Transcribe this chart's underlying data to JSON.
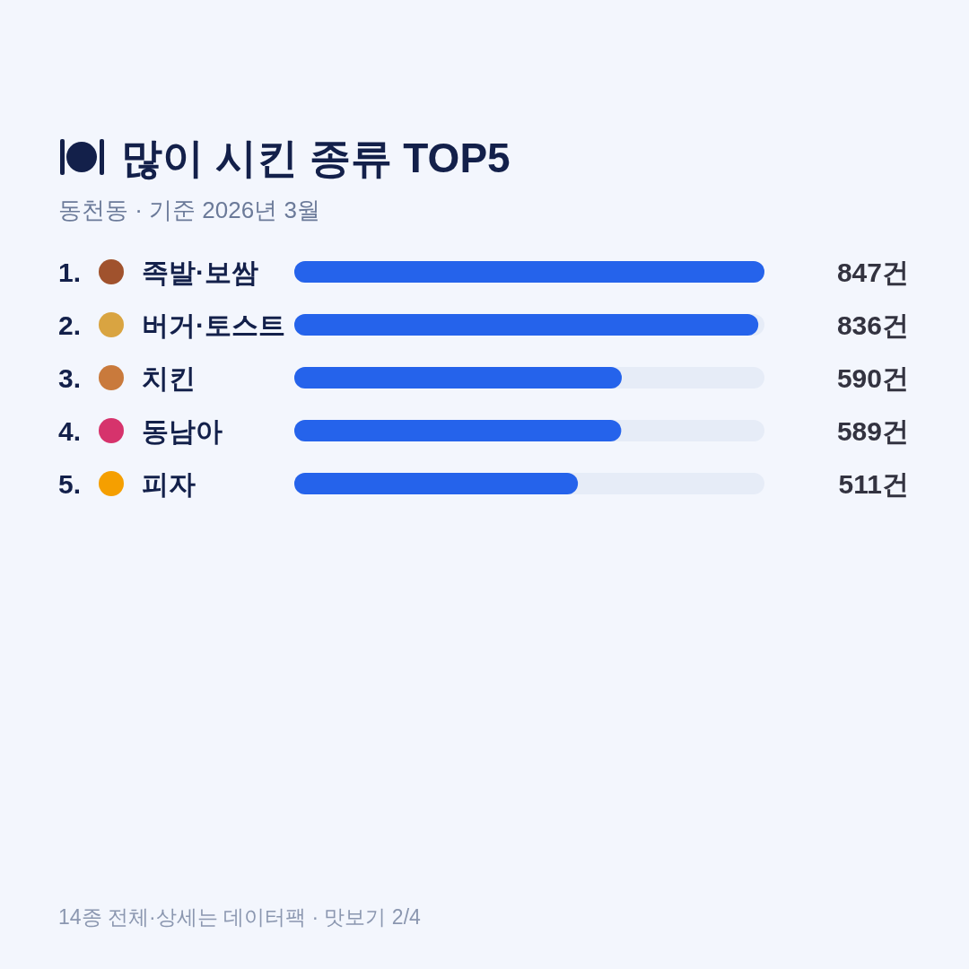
{
  "chart_data": {
    "type": "bar",
    "orientation": "horizontal",
    "title": "많이 시킨 종류 TOP5",
    "subtitle": "동천동 · 기준 2026년 3월",
    "categories": [
      "1. 족발·보쌈",
      "2. 버거·토스트",
      "3. 치킨",
      "4. 동남아",
      "5. 피자"
    ],
    "values": [
      847,
      836,
      590,
      589,
      511
    ],
    "value_labels": [
      "847건",
      "836건",
      "590건",
      "589건",
      "511건"
    ],
    "color": "#2563eb",
    "annotations": [
      "14종 전체·상세는 데이터팩 · 맛보기 2/4"
    ]
  }
}
